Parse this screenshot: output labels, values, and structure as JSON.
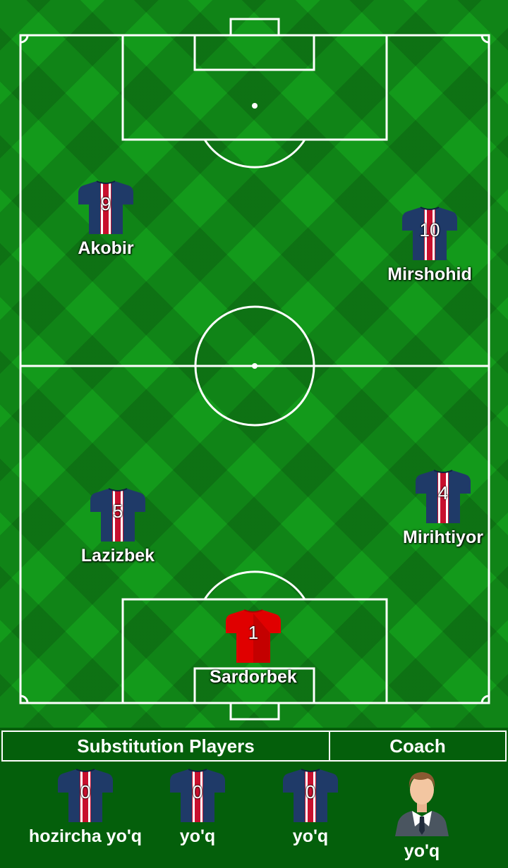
{
  "colors": {
    "pitch": "#139a1b",
    "panel": "#045f0b",
    "lines": "#ffffff",
    "outfield_jersey": "#1f3a68",
    "goalkeeper_jersey": "#e00000",
    "stripe_red": "#c8102e"
  },
  "players": [
    {
      "number": "9",
      "name": "Akobir",
      "kit": "outfield"
    },
    {
      "number": "10",
      "name": "Mirshohid",
      "kit": "outfield"
    },
    {
      "number": "5",
      "name": "Lazizbek",
      "kit": "outfield"
    },
    {
      "number": "4",
      "name": "Mirihtiyor",
      "kit": "outfield"
    },
    {
      "number": "1",
      "name": "Sardorbek",
      "kit": "goalkeeper"
    }
  ],
  "bench": {
    "substitutes_header": "Substitution Players",
    "coach_header": "Coach",
    "substitutes": [
      {
        "number": "0",
        "name": "hozircha yo'q"
      },
      {
        "number": "0",
        "name": "yo'q"
      },
      {
        "number": "0",
        "name": "yo'q"
      }
    ],
    "coach": {
      "name": "yo'q",
      "icon": "coach-avatar-icon"
    }
  }
}
